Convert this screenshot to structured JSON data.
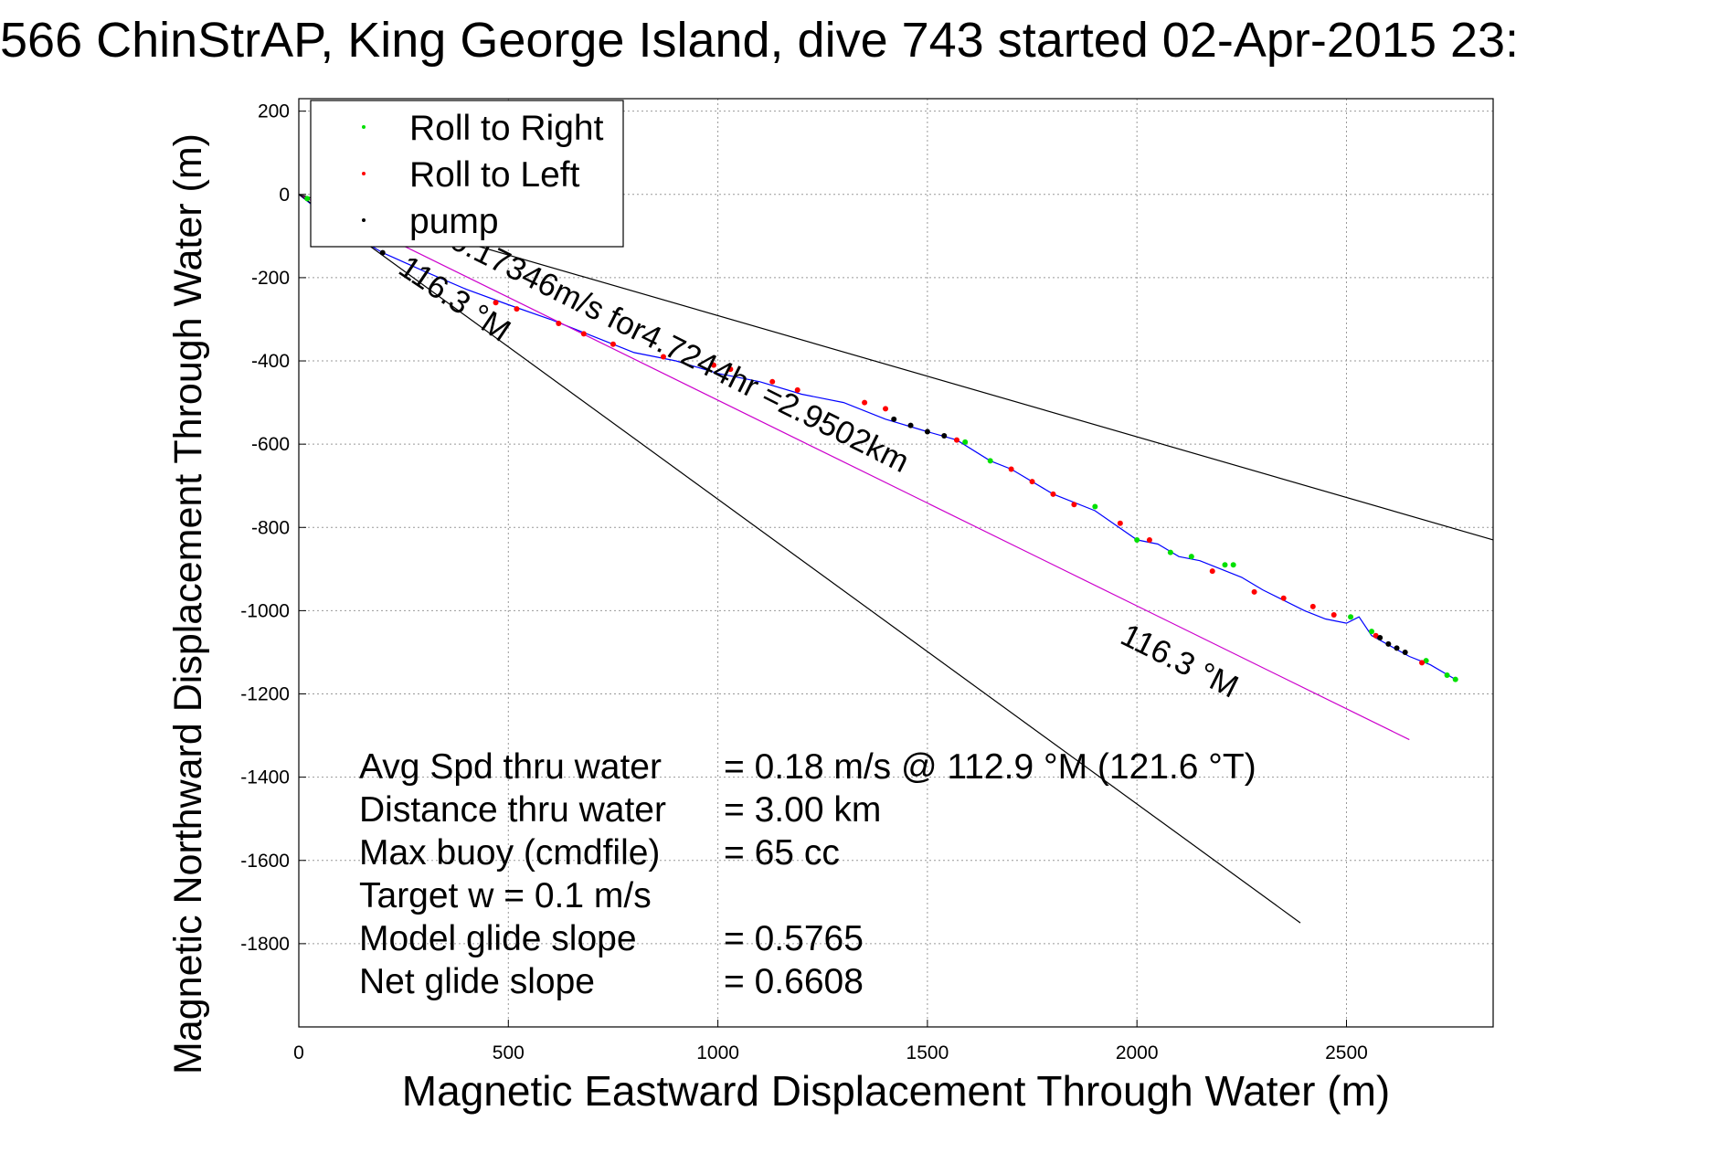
{
  "chart_data": {
    "type": "line",
    "title": "566 ChinStrAP, King George Island, dive 743 started 02-Apr-2015 23:",
    "xlabel": "Magnetic Eastward Displacement Through Water (m)",
    "ylabel": "Magnetic Northward Displacement Through Water (m)",
    "xlim": [
      0,
      2850
    ],
    "ylim": [
      -2000,
      230
    ],
    "xticks": [
      0,
      500,
      1000,
      1500,
      2000,
      2500
    ],
    "yticks": [
      200,
      0,
      -200,
      -400,
      -600,
      -800,
      -1000,
      -1200,
      -1400,
      -1600,
      -1800
    ],
    "grid": true,
    "legend_position": "top-left",
    "legend": [
      {
        "label": "Roll to Right",
        "color": "#00e000"
      },
      {
        "label": "Roll to Left",
        "color": "#ff0000"
      },
      {
        "label": "pump",
        "color": "#000000"
      }
    ],
    "series": [
      {
        "name": "track",
        "color": "#0000ff",
        "x": [
          0,
          100,
          200,
          300,
          400,
          500,
          600,
          700,
          800,
          900,
          1000,
          1100,
          1200,
          1300,
          1400,
          1500,
          1570,
          1650,
          1700,
          1800,
          1900,
          2000,
          2050,
          2100,
          2150,
          2200,
          2250,
          2300,
          2400,
          2450,
          2500,
          2530,
          2560,
          2650,
          2700,
          2760
        ],
        "y": [
          0,
          -80,
          -140,
          -185,
          -228,
          -265,
          -300,
          -340,
          -380,
          -400,
          -430,
          -450,
          -480,
          -500,
          -540,
          -570,
          -590,
          -640,
          -660,
          -720,
          -760,
          -830,
          -840,
          -870,
          -880,
          -900,
          -920,
          -950,
          -1000,
          -1020,
          -1030,
          -1015,
          -1060,
          -1110,
          -1130,
          -1165
        ]
      },
      {
        "name": "model heading",
        "color": "#cc00cc",
        "x": [
          0,
          2650
        ],
        "y": [
          0,
          -1310
        ]
      },
      {
        "name": "bound upper",
        "color": "#000000",
        "x": [
          0,
          2850
        ],
        "y": [
          0,
          -830
        ]
      },
      {
        "name": "bound lower",
        "color": "#000000",
        "x": [
          0,
          2390
        ],
        "y": [
          0,
          -1750
        ]
      }
    ],
    "markers": {
      "roll_right": {
        "color": "#00e000",
        "x": [
          20,
          1590,
          1650,
          1900,
          2000,
          2080,
          2130,
          2210,
          2230,
          2510,
          2560,
          2690,
          2740,
          2760
        ],
        "y": [
          -10,
          -595,
          -640,
          -750,
          -830,
          -860,
          -870,
          -890,
          -890,
          -1015,
          -1050,
          -1120,
          -1155,
          -1165
        ]
      },
      "roll_left": {
        "color": "#ff0000",
        "x": [
          470,
          520,
          620,
          680,
          750,
          870,
          990,
          1030,
          1130,
          1190,
          1350,
          1400,
          1570,
          1700,
          1750,
          1800,
          1850,
          1960,
          2030,
          2180,
          2280,
          2350,
          2420,
          2470,
          2570,
          2680
        ],
        "y": [
          -260,
          -275,
          -310,
          -335,
          -360,
          -390,
          -410,
          -420,
          -450,
          -470,
          -500,
          -515,
          -590,
          -660,
          -690,
          -720,
          -745,
          -790,
          -830,
          -905,
          -955,
          -970,
          -990,
          -1010,
          -1060,
          -1125
        ]
      },
      "pump": {
        "color": "#000000",
        "x": [
          100,
          200,
          1420,
          1460,
          1500,
          1540,
          2580,
          2600,
          2620,
          2640
        ],
        "y": [
          -80,
          -140,
          -540,
          -555,
          -570,
          -580,
          -1065,
          -1080,
          -1090,
          -1100
        ]
      }
    },
    "line_labels": [
      {
        "text": "0.17346m/s for4.7244hr =2.9502km"
      },
      {
        "text": "116.3 °M"
      },
      {
        "text": "116.3 °M"
      }
    ],
    "annotations": [
      {
        "label": "Avg Spd thru water",
        "value": "=  0.18 m/s @ 112.9 °M (121.6 °T)"
      },
      {
        "label": "Distance thru water",
        "value": "=  3.00 km"
      },
      {
        "label": "Max buoy (cmdfile)",
        "value": "= 65 cc"
      },
      {
        "label": "Target w    = 0.1 m/s",
        "value": ""
      },
      {
        "label": "Model glide slope",
        "value": "= 0.5765"
      },
      {
        "label": "Net glide slope",
        "value": "= 0.6608"
      }
    ]
  }
}
